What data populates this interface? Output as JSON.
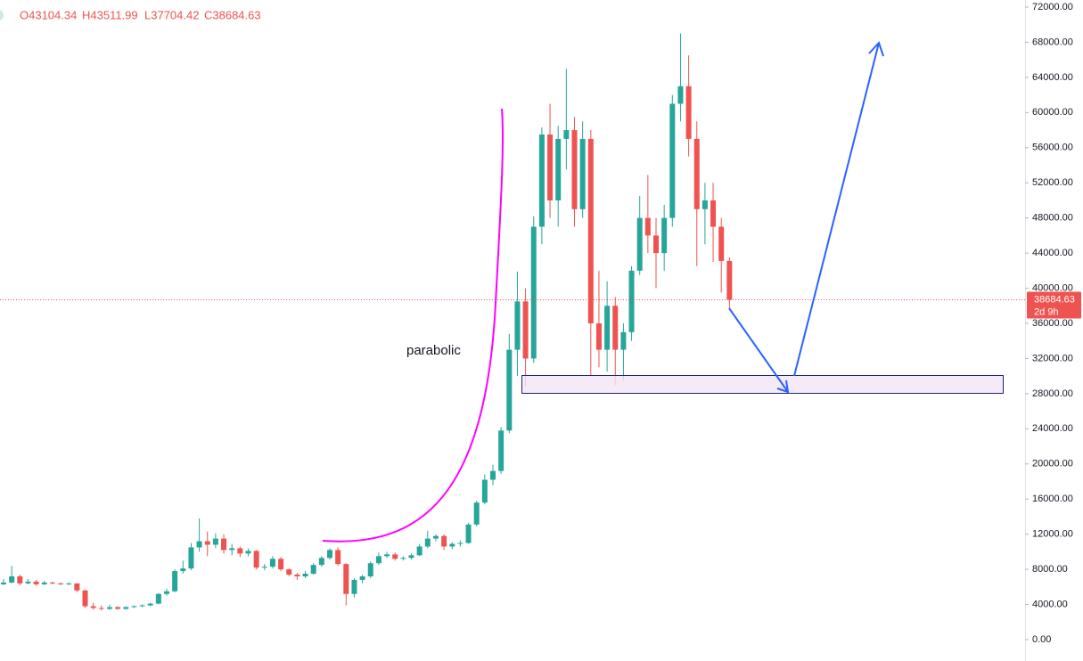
{
  "chart_data": {
    "type": "candlestick",
    "header": {
      "open": "O43104.34",
      "high": "H43511.99",
      "low": "L37704.42",
      "close": "C38684.63"
    },
    "annotation": "parabolic",
    "up_color": "#26a69a",
    "down_color": "#ef5350",
    "last_price": {
      "value": 38684.63,
      "label": "38684.63"
    },
    "countdown": "2d 9h",
    "ylim": [
      0,
      72000
    ],
    "yticks": [
      {
        "value": 0,
        "label": "0.00"
      },
      {
        "value": 4000,
        "label": "4000.00"
      },
      {
        "value": 8000,
        "label": "8000.00"
      },
      {
        "value": 12000,
        "label": "12000.00"
      },
      {
        "value": 16000,
        "label": "16000.00"
      },
      {
        "value": 20000,
        "label": "20000.00"
      },
      {
        "value": 24000,
        "label": "24000.00"
      },
      {
        "value": 28000,
        "label": "28000.00"
      },
      {
        "value": 32000,
        "label": "32000.00"
      },
      {
        "value": 36000,
        "label": "36000.00"
      },
      {
        "value": 40000,
        "label": "40000.00"
      },
      {
        "value": 44000,
        "label": "44000.00"
      },
      {
        "value": 48000,
        "label": "48000.00"
      },
      {
        "value": 52000,
        "label": "52000.00"
      },
      {
        "value": 56000,
        "label": "56000.00"
      },
      {
        "value": 60000,
        "label": "60000.00"
      },
      {
        "value": 64000,
        "label": "64000.00"
      },
      {
        "value": 68000,
        "label": "68000.00"
      },
      {
        "value": 72000,
        "label": "72000.00"
      }
    ],
    "candles": [
      [
        6300,
        6900,
        6200,
        6500
      ],
      [
        6500,
        8400,
        6400,
        7200
      ],
      [
        7200,
        7400,
        6200,
        6400
      ],
      [
        6400,
        6900,
        6300,
        6600
      ],
      [
        6600,
        6800,
        6100,
        6300
      ],
      [
        6300,
        6700,
        6200,
        6500
      ],
      [
        6500,
        6600,
        6300,
        6400
      ],
      [
        6400,
        6500,
        6200,
        6300
      ],
      [
        6300,
        6500,
        6200,
        6400
      ],
      [
        6400,
        6400,
        5400,
        5600
      ],
      [
        5600,
        5700,
        3600,
        3800
      ],
      [
        3800,
        4200,
        3400,
        3600
      ],
      [
        3600,
        3900,
        3300,
        3500
      ],
      [
        3500,
        4000,
        3400,
        3700
      ],
      [
        3700,
        3800,
        3400,
        3500
      ],
      [
        3500,
        3800,
        3400,
        3700
      ],
      [
        3700,
        3900,
        3600,
        3800
      ],
      [
        3800,
        4000,
        3700,
        3900
      ],
      [
        3900,
        4200,
        3800,
        4100
      ],
      [
        4100,
        5300,
        4000,
        5200
      ],
      [
        5200,
        5800,
        5000,
        5500
      ],
      [
        5500,
        8000,
        5400,
        7800
      ],
      [
        7800,
        9000,
        7500,
        8100
      ],
      [
        8100,
        11000,
        7900,
        10500
      ],
      [
        10500,
        13800,
        10000,
        11200
      ],
      [
        11200,
        12300,
        9500,
        10800
      ],
      [
        10800,
        12100,
        10400,
        11500
      ],
      [
        11500,
        12000,
        9800,
        10200
      ],
      [
        10200,
        10900,
        9600,
        10400
      ],
      [
        10400,
        10600,
        9400,
        9800
      ],
      [
        9800,
        10400,
        9500,
        10100
      ],
      [
        10100,
        10200,
        8000,
        8200
      ],
      [
        8200,
        8600,
        7900,
        8300
      ],
      [
        8300,
        9500,
        8100,
        9200
      ],
      [
        9200,
        9400,
        7800,
        8000
      ],
      [
        8000,
        8100,
        7200,
        7400
      ],
      [
        7400,
        7600,
        6800,
        7200
      ],
      [
        7200,
        7800,
        7000,
        7500
      ],
      [
        7500,
        8700,
        7400,
        8500
      ],
      [
        8500,
        9500,
        8300,
        9300
      ],
      [
        9300,
        10400,
        9100,
        10200
      ],
      [
        10200,
        10500,
        8400,
        8600
      ],
      [
        8600,
        8700,
        3900,
        5200
      ],
      [
        5200,
        7000,
        4800,
        6800
      ],
      [
        6800,
        7400,
        6400,
        7200
      ],
      [
        7200,
        8900,
        7000,
        8700
      ],
      [
        8700,
        9900,
        8500,
        9500
      ],
      [
        9500,
        10000,
        9300,
        9700
      ],
      [
        9700,
        9900,
        9000,
        9200
      ],
      [
        9200,
        9500,
        9000,
        9300
      ],
      [
        9300,
        9800,
        9100,
        9600
      ],
      [
        9600,
        10900,
        9500,
        10600
      ],
      [
        10600,
        12400,
        10400,
        11500
      ],
      [
        11500,
        12000,
        11200,
        11800
      ],
      [
        11800,
        12000,
        10200,
        10600
      ],
      [
        10600,
        11100,
        10300,
        10900
      ],
      [
        10900,
        11300,
        10600,
        11000
      ],
      [
        11000,
        13300,
        10900,
        13100
      ],
      [
        13100,
        15800,
        12900,
        15600
      ],
      [
        15600,
        18800,
        15400,
        18200
      ],
      [
        18200,
        19900,
        17600,
        19200
      ],
      [
        19200,
        24200,
        18900,
        23800
      ],
      [
        23800,
        34800,
        23500,
        33000
      ],
      [
        33000,
        41900,
        30000,
        38500
      ],
      [
        38500,
        40000,
        28800,
        32000
      ],
      [
        32000,
        48200,
        31500,
        47000
      ],
      [
        47000,
        58300,
        45000,
        57500
      ],
      [
        57500,
        61000,
        48000,
        50000
      ],
      [
        50000,
        58500,
        47000,
        57000
      ],
      [
        57000,
        65000,
        53500,
        58000
      ],
      [
        58000,
        59500,
        47000,
        49000
      ],
      [
        49000,
        59000,
        48000,
        57000
      ],
      [
        57000,
        58000,
        30000,
        36000
      ],
      [
        36000,
        42000,
        31000,
        33000
      ],
      [
        33000,
        40800,
        30500,
        38000
      ],
      [
        38000,
        39000,
        29000,
        33000
      ],
      [
        33000,
        36000,
        29500,
        35000
      ],
      [
        35000,
        42500,
        34000,
        42000
      ],
      [
        42000,
        50500,
        41500,
        48000
      ],
      [
        48000,
        52900,
        44000,
        46000
      ],
      [
        46000,
        48000,
        40000,
        44000
      ],
      [
        44000,
        49500,
        42000,
        48000
      ],
      [
        48000,
        62000,
        47000,
        61000
      ],
      [
        61000,
        69000,
        59000,
        63000
      ],
      [
        63000,
        66500,
        55000,
        57000
      ],
      [
        57000,
        59000,
        42500,
        49000
      ],
      [
        49000,
        52000,
        45000,
        50000
      ],
      [
        50000,
        52000,
        43000,
        47000
      ],
      [
        47000,
        48000,
        39500,
        43104.34
      ],
      [
        43104.34,
        43511.99,
        37704.42,
        38684.63
      ]
    ]
  }
}
